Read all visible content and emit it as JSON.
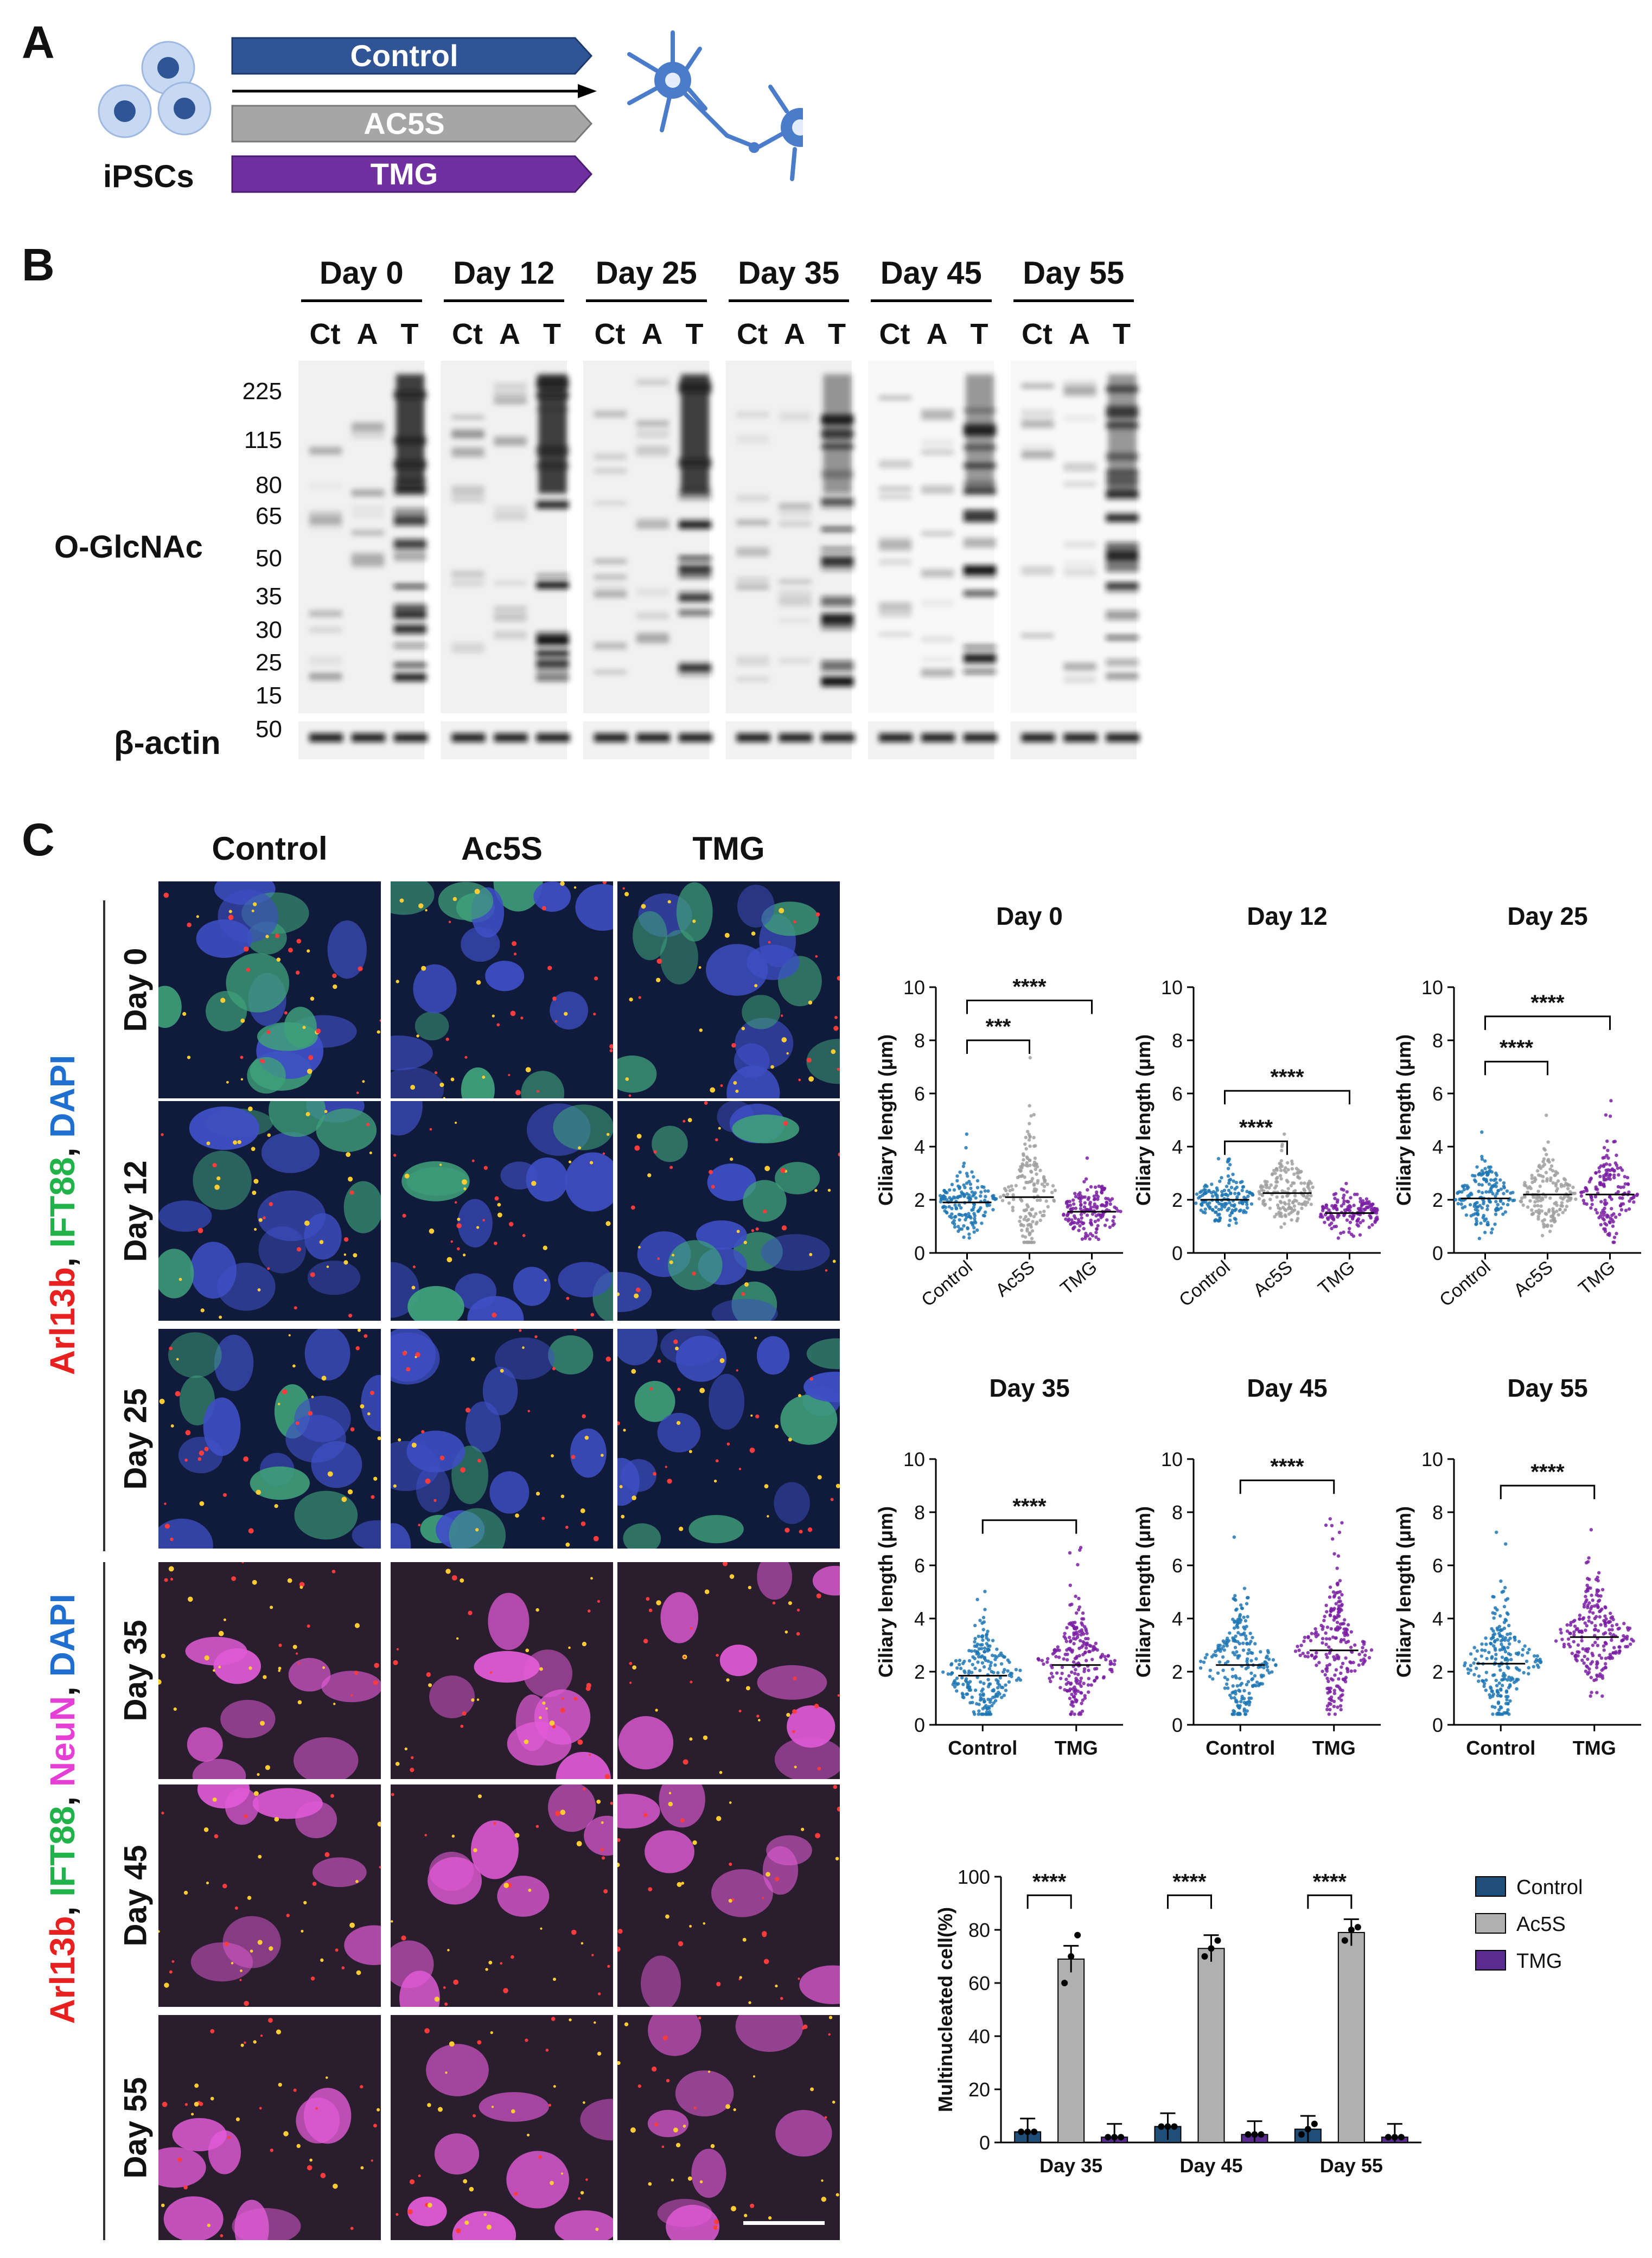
{
  "panelA": {
    "letter": "A",
    "cell_label": "iPSCs",
    "arrows": [
      {
        "label": "Control",
        "color": "#2f5597"
      },
      {
        "label": "AC5S",
        "color": "#a6a6a6"
      },
      {
        "label": "TMG",
        "color": "#7030a0"
      }
    ]
  },
  "panelB": {
    "letter": "B",
    "days": [
      "Day 0",
      "Day 12",
      "Day 25",
      "Day 35",
      "Day 45",
      "Day 55"
    ],
    "lanes": [
      "Ct",
      "A",
      "T"
    ],
    "mw_markers": [
      "225",
      "115",
      "80",
      "65",
      "50",
      "35",
      "30",
      "25",
      "15"
    ],
    "actin_marker": "50",
    "blot_label": "O-GlcNAc",
    "actin_label": "β-actin"
  },
  "panelC": {
    "letter": "C",
    "columns": [
      "Control",
      "Ac5S",
      "TMG"
    ],
    "rows_top": [
      "Day 0",
      "Day 12",
      "Day 25"
    ],
    "rows_bottom": [
      "Day 35",
      "Day 45",
      "Day 55"
    ],
    "stain_top": [
      {
        "text": "Arl13b",
        "color": "#e8201f"
      },
      {
        "text": ", ",
        "color": "#111111"
      },
      {
        "text": "IFT88",
        "color": "#21b24a"
      },
      {
        "text": ", ",
        "color": "#111111"
      },
      {
        "text": "DAPI",
        "color": "#1f6fd1"
      }
    ],
    "stain_bottom": [
      {
        "text": "Arl13b",
        "color": "#e8201f"
      },
      {
        "text": ", ",
        "color": "#111111"
      },
      {
        "text": "IFT88",
        "color": "#21b24a"
      },
      {
        "text": ", ",
        "color": "#111111"
      },
      {
        "text": "NeuN",
        "color": "#e63fd6"
      },
      {
        "text": ", ",
        "color": "#111111"
      },
      {
        "text": "DAPI",
        "color": "#1f6fd1"
      }
    ]
  },
  "chart_data": [
    {
      "type": "scatter",
      "title": "Day 0",
      "ylabel": "Ciliary length (μm)",
      "ylim": [
        0,
        10
      ],
      "yticks": [
        "0",
        "2",
        "4",
        "6",
        "8",
        "10"
      ],
      "categories": [
        "Control",
        "Ac5S",
        "TMG"
      ],
      "colors": [
        "#1f77b4",
        "#a0a0a0",
        "#7a1fa2"
      ],
      "median": [
        1.9,
        2.1,
        1.55
      ],
      "max": [
        4.5,
        7.6,
        3.6
      ],
      "brackets": [
        {
          "from": 0,
          "to": 1,
          "label": "***",
          "y": 8.0
        },
        {
          "from": 0,
          "to": 2,
          "label": "****",
          "y": 9.5
        }
      ],
      "rotated": true
    },
    {
      "type": "scatter",
      "title": "Day 12",
      "ylabel": "Ciliary length (μm)",
      "ylim": [
        0,
        10
      ],
      "yticks": [
        "0",
        "2",
        "4",
        "6",
        "8",
        "10"
      ],
      "categories": [
        "Control",
        "Ac5S",
        "TMG"
      ],
      "colors": [
        "#1f77b4",
        "#a0a0a0",
        "#7a1fa2"
      ],
      "median": [
        2.0,
        2.25,
        1.5
      ],
      "max": [
        3.8,
        4.6,
        3.0
      ],
      "brackets": [
        {
          "from": 0,
          "to": 1,
          "label": "****",
          "y": 4.2
        },
        {
          "from": 0,
          "to": 2,
          "label": "****",
          "y": 6.1
        }
      ],
      "rotated": true
    },
    {
      "type": "scatter",
      "title": "Day 25",
      "ylabel": "Ciliary length (μm)",
      "ylim": [
        0,
        10
      ],
      "yticks": [
        "0",
        "2",
        "4",
        "6",
        "8",
        "10"
      ],
      "categories": [
        "Control",
        "Ac5S",
        "TMG"
      ],
      "colors": [
        "#1f77b4",
        "#a0a0a0",
        "#7a1fa2"
      ],
      "median": [
        2.05,
        2.2,
        2.2
      ],
      "max": [
        4.6,
        5.2,
        5.8
      ],
      "brackets": [
        {
          "from": 0,
          "to": 1,
          "label": "****",
          "y": 7.2
        },
        {
          "from": 0,
          "to": 2,
          "label": "****",
          "y": 8.9
        }
      ],
      "rotated": true
    },
    {
      "type": "scatter",
      "title": "Day 35",
      "ylabel": "Ciliary length (μm)",
      "ylim": [
        0,
        10
      ],
      "yticks": [
        "0",
        "2",
        "4",
        "6",
        "8",
        "10"
      ],
      "categories": [
        "Control",
        "TMG"
      ],
      "colors": [
        "#1f77b4",
        "#7a1fa2"
      ],
      "median": [
        1.85,
        2.25
      ],
      "max": [
        5.6,
        6.8
      ],
      "brackets": [
        {
          "from": 0,
          "to": 1,
          "label": "****",
          "y": 7.7
        }
      ],
      "rotated": false
    },
    {
      "type": "scatter",
      "title": "Day 45",
      "ylabel": "Ciliary length (μm)",
      "ylim": [
        0,
        10
      ],
      "yticks": [
        "0",
        "2",
        "4",
        "6",
        "8",
        "10"
      ],
      "categories": [
        "Control",
        "TMG"
      ],
      "colors": [
        "#1f77b4",
        "#7a1fa2"
      ],
      "median": [
        2.25,
        2.8
      ],
      "max": [
        7.3,
        8.0
      ],
      "brackets": [
        {
          "from": 0,
          "to": 1,
          "label": "****",
          "y": 9.2
        }
      ],
      "rotated": false
    },
    {
      "type": "scatter",
      "title": "Day 55",
      "ylabel": "Ciliary length (μm)",
      "ylim": [
        0,
        10
      ],
      "yticks": [
        "0",
        "2",
        "4",
        "6",
        "8",
        "10"
      ],
      "categories": [
        "Control",
        "TMG"
      ],
      "colors": [
        "#1f77b4",
        "#7a1fa2"
      ],
      "median": [
        2.3,
        3.3
      ],
      "max": [
        7.4,
        7.6
      ],
      "brackets": [
        {
          "from": 0,
          "to": 1,
          "label": "****",
          "y": 9.0
        }
      ],
      "rotated": false
    },
    {
      "type": "bar",
      "title": "",
      "ylabel": "Multinucleated cell(%)",
      "ylim": [
        0,
        100
      ],
      "yticks": [
        "0",
        "20",
        "40",
        "60",
        "80",
        "100"
      ],
      "categories": [
        "Day 35",
        "Day 45",
        "Day 55"
      ],
      "series": [
        {
          "name": "Control",
          "color": "#1f4e79",
          "values": [
            4,
            6,
            5
          ],
          "points": [
            [
              4,
              4,
              4
            ],
            [
              6,
              6,
              6
            ],
            [
              3,
              5,
              7
            ]
          ]
        },
        {
          "name": "Ac5S",
          "color": "#b0b0b0",
          "values": [
            69,
            73,
            79
          ],
          "points": [
            [
              60,
              70,
              78
            ],
            [
              70,
              73,
              76
            ],
            [
              76,
              80,
              81
            ]
          ]
        },
        {
          "name": "TMG",
          "color": "#5b2c8f",
          "values": [
            2,
            3,
            2
          ],
          "points": [
            [
              2,
              2,
              2
            ],
            [
              3,
              3,
              3
            ],
            [
              2,
              2,
              2
            ]
          ]
        }
      ],
      "brackets": [
        {
          "group": 0,
          "label": "****",
          "y": 93
        },
        {
          "group": 1,
          "label": "****",
          "y": 93
        },
        {
          "group": 2,
          "label": "****",
          "y": 93
        }
      ],
      "legend": "right"
    }
  ]
}
